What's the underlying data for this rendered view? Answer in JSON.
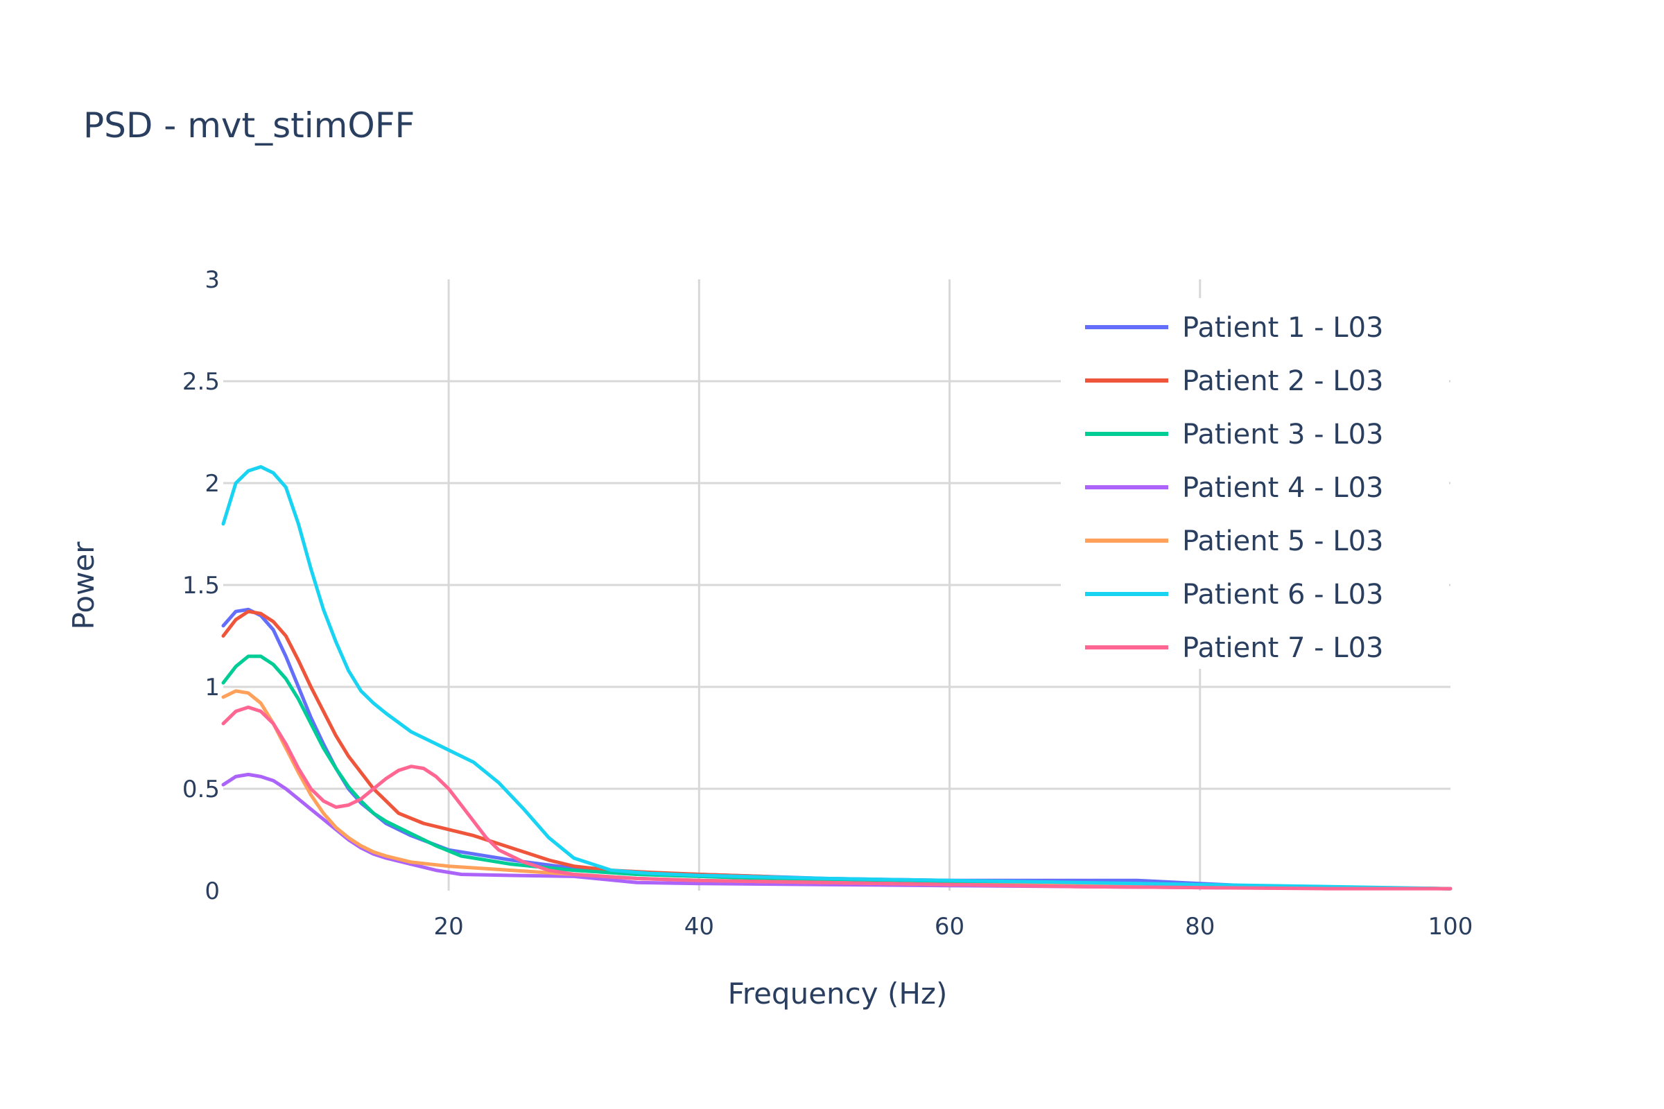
{
  "chart_data": {
    "type": "line",
    "title": "PSD - mvt_stimOFF",
    "xlabel": "Frequency (Hz)",
    "ylabel": "Power",
    "xlim": [
      2,
      100
    ],
    "ylim": [
      0,
      3
    ],
    "x_ticks": [
      20,
      40,
      60,
      80,
      100
    ],
    "y_ticks": [
      0,
      0.5,
      1,
      1.5,
      2,
      2.5,
      3
    ],
    "x_tick_labels": [
      "20",
      "40",
      "60",
      "80",
      "100"
    ],
    "y_tick_labels": [
      "0",
      "0.5",
      "1",
      "1.5",
      "2",
      "2.5",
      "3"
    ],
    "grid": true,
    "legend_position": "top-right",
    "series": [
      {
        "name": "Patient 1 - L03",
        "color": "#636efa",
        "points": [
          [
            2,
            1.3
          ],
          [
            3,
            1.37
          ],
          [
            4,
            1.38
          ],
          [
            5,
            1.35
          ],
          [
            6,
            1.28
          ],
          [
            7,
            1.15
          ],
          [
            8,
            1.0
          ],
          [
            9,
            0.85
          ],
          [
            10,
            0.72
          ],
          [
            11,
            0.6
          ],
          [
            12,
            0.5
          ],
          [
            13,
            0.43
          ],
          [
            14,
            0.38
          ],
          [
            15,
            0.33
          ],
          [
            17,
            0.27
          ],
          [
            20,
            0.2
          ],
          [
            25,
            0.15
          ],
          [
            30,
            0.11
          ],
          [
            35,
            0.09
          ],
          [
            40,
            0.08
          ],
          [
            50,
            0.06
          ],
          [
            60,
            0.05
          ],
          [
            70,
            0.05
          ],
          [
            75,
            0.05
          ],
          [
            80,
            0.035
          ],
          [
            85,
            0.02
          ],
          [
            90,
            0.015
          ],
          [
            100,
            0.01
          ]
        ]
      },
      {
        "name": "Patient 2 - L03",
        "color": "#ef553b",
        "points": [
          [
            2,
            1.25
          ],
          [
            3,
            1.33
          ],
          [
            4,
            1.37
          ],
          [
            5,
            1.36
          ],
          [
            6,
            1.32
          ],
          [
            7,
            1.25
          ],
          [
            8,
            1.13
          ],
          [
            9,
            1.0
          ],
          [
            10,
            0.88
          ],
          [
            11,
            0.76
          ],
          [
            12,
            0.66
          ],
          [
            13,
            0.58
          ],
          [
            14,
            0.5
          ],
          [
            15,
            0.44
          ],
          [
            16,
            0.38
          ],
          [
            18,
            0.33
          ],
          [
            20,
            0.3
          ],
          [
            22,
            0.27
          ],
          [
            24,
            0.23
          ],
          [
            26,
            0.19
          ],
          [
            28,
            0.15
          ],
          [
            30,
            0.12
          ],
          [
            33,
            0.1
          ],
          [
            36,
            0.09
          ],
          [
            40,
            0.08
          ],
          [
            45,
            0.07
          ],
          [
            50,
            0.055
          ],
          [
            60,
            0.045
          ],
          [
            70,
            0.035
          ],
          [
            80,
            0.025
          ],
          [
            90,
            0.015
          ],
          [
            100,
            0.01
          ]
        ]
      },
      {
        "name": "Patient 3 - L03",
        "color": "#00cc96",
        "points": [
          [
            2,
            1.02
          ],
          [
            3,
            1.1
          ],
          [
            4,
            1.15
          ],
          [
            5,
            1.15
          ],
          [
            6,
            1.11
          ],
          [
            7,
            1.04
          ],
          [
            8,
            0.94
          ],
          [
            9,
            0.82
          ],
          [
            10,
            0.7
          ],
          [
            11,
            0.6
          ],
          [
            12,
            0.51
          ],
          [
            13,
            0.44
          ],
          [
            14,
            0.38
          ],
          [
            15,
            0.34
          ],
          [
            17,
            0.28
          ],
          [
            19,
            0.22
          ],
          [
            21,
            0.17
          ],
          [
            25,
            0.13
          ],
          [
            30,
            0.1
          ],
          [
            35,
            0.08
          ],
          [
            40,
            0.07
          ],
          [
            50,
            0.05
          ],
          [
            60,
            0.04
          ],
          [
            70,
            0.03
          ],
          [
            80,
            0.02
          ],
          [
            90,
            0.015
          ],
          [
            100,
            0.01
          ]
        ]
      },
      {
        "name": "Patient 4 - L03",
        "color": "#ab63fa",
        "points": [
          [
            2,
            0.52
          ],
          [
            3,
            0.56
          ],
          [
            4,
            0.57
          ],
          [
            5,
            0.56
          ],
          [
            6,
            0.54
          ],
          [
            7,
            0.5
          ],
          [
            8,
            0.45
          ],
          [
            9,
            0.4
          ],
          [
            10,
            0.35
          ],
          [
            11,
            0.3
          ],
          [
            12,
            0.25
          ],
          [
            13,
            0.21
          ],
          [
            14,
            0.18
          ],
          [
            15,
            0.16
          ],
          [
            17,
            0.13
          ],
          [
            19,
            0.1
          ],
          [
            21,
            0.08
          ],
          [
            25,
            0.075
          ],
          [
            30,
            0.07
          ],
          [
            35,
            0.04
          ],
          [
            40,
            0.035
          ],
          [
            50,
            0.03
          ],
          [
            60,
            0.025
          ],
          [
            70,
            0.02
          ],
          [
            80,
            0.015
          ],
          [
            90,
            0.012
          ],
          [
            100,
            0.01
          ]
        ]
      },
      {
        "name": "Patient 5 - L03",
        "color": "#ffa15a",
        "points": [
          [
            2,
            0.95
          ],
          [
            3,
            0.98
          ],
          [
            4,
            0.97
          ],
          [
            5,
            0.92
          ],
          [
            6,
            0.82
          ],
          [
            7,
            0.7
          ],
          [
            8,
            0.58
          ],
          [
            9,
            0.47
          ],
          [
            10,
            0.38
          ],
          [
            11,
            0.31
          ],
          [
            12,
            0.26
          ],
          [
            13,
            0.22
          ],
          [
            14,
            0.19
          ],
          [
            15,
            0.17
          ],
          [
            17,
            0.14
          ],
          [
            20,
            0.12
          ],
          [
            25,
            0.1
          ],
          [
            30,
            0.08
          ],
          [
            35,
            0.06
          ],
          [
            40,
            0.05
          ],
          [
            50,
            0.04
          ],
          [
            60,
            0.03
          ],
          [
            70,
            0.025
          ],
          [
            80,
            0.02
          ],
          [
            90,
            0.015
          ],
          [
            100,
            0.01
          ]
        ]
      },
      {
        "name": "Patient 6 - L03",
        "color": "#19d3f3",
        "points": [
          [
            2,
            1.8
          ],
          [
            3,
            2.0
          ],
          [
            4,
            2.06
          ],
          [
            5,
            2.08
          ],
          [
            6,
            2.05
          ],
          [
            7,
            1.98
          ],
          [
            8,
            1.8
          ],
          [
            9,
            1.58
          ],
          [
            10,
            1.38
          ],
          [
            11,
            1.22
          ],
          [
            12,
            1.08
          ],
          [
            13,
            0.98
          ],
          [
            14,
            0.92
          ],
          [
            15,
            0.87
          ],
          [
            17,
            0.78
          ],
          [
            19,
            0.72
          ],
          [
            20,
            0.69
          ],
          [
            22,
            0.63
          ],
          [
            24,
            0.53
          ],
          [
            26,
            0.4
          ],
          [
            28,
            0.26
          ],
          [
            30,
            0.16
          ],
          [
            33,
            0.1
          ],
          [
            36,
            0.085
          ],
          [
            40,
            0.075
          ],
          [
            50,
            0.06
          ],
          [
            60,
            0.05
          ],
          [
            70,
            0.04
          ],
          [
            80,
            0.03
          ],
          [
            90,
            0.02
          ],
          [
            100,
            0.01
          ]
        ]
      },
      {
        "name": "Patient 7 - L03",
        "color": "#ff6692",
        "points": [
          [
            2,
            0.82
          ],
          [
            3,
            0.88
          ],
          [
            4,
            0.9
          ],
          [
            5,
            0.88
          ],
          [
            6,
            0.82
          ],
          [
            7,
            0.72
          ],
          [
            8,
            0.6
          ],
          [
            9,
            0.5
          ],
          [
            10,
            0.44
          ],
          [
            11,
            0.41
          ],
          [
            12,
            0.42
          ],
          [
            13,
            0.45
          ],
          [
            14,
            0.5
          ],
          [
            15,
            0.55
          ],
          [
            16,
            0.59
          ],
          [
            17,
            0.61
          ],
          [
            18,
            0.6
          ],
          [
            19,
            0.56
          ],
          [
            20,
            0.5
          ],
          [
            21,
            0.42
          ],
          [
            22,
            0.34
          ],
          [
            23,
            0.26
          ],
          [
            24,
            0.2
          ],
          [
            26,
            0.14
          ],
          [
            28,
            0.1
          ],
          [
            30,
            0.08
          ],
          [
            35,
            0.06
          ],
          [
            40,
            0.05
          ],
          [
            50,
            0.04
          ],
          [
            60,
            0.03
          ],
          [
            70,
            0.02
          ],
          [
            80,
            0.015
          ],
          [
            90,
            0.01
          ],
          [
            100,
            0.01
          ]
        ]
      }
    ]
  }
}
